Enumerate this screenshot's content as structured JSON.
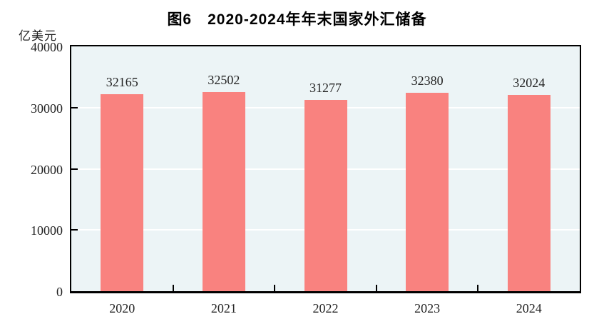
{
  "chart": {
    "title": "图6　2020-2024年年末国家外汇储备",
    "unit_label": "亿美元"
  },
  "chart_data": {
    "type": "bar",
    "title": "图6　2020-2024年年末国家外汇储备",
    "ylabel": "亿美元",
    "xlabel": "",
    "categories": [
      "2020",
      "2021",
      "2022",
      "2023",
      "2024"
    ],
    "values": [
      32165,
      32502,
      31277,
      32380,
      32024
    ],
    "ylim": [
      0,
      40000
    ],
    "yticks": [
      0,
      10000,
      20000,
      30000,
      40000
    ],
    "gridlines_at": [
      10000,
      20000,
      30000
    ],
    "legend_position": "none",
    "colors": {
      "bar": "#f9827f",
      "plot_background": "#ecf4f6",
      "gridline": "#ffffff",
      "axis": "#000000",
      "text": "#222222"
    }
  }
}
